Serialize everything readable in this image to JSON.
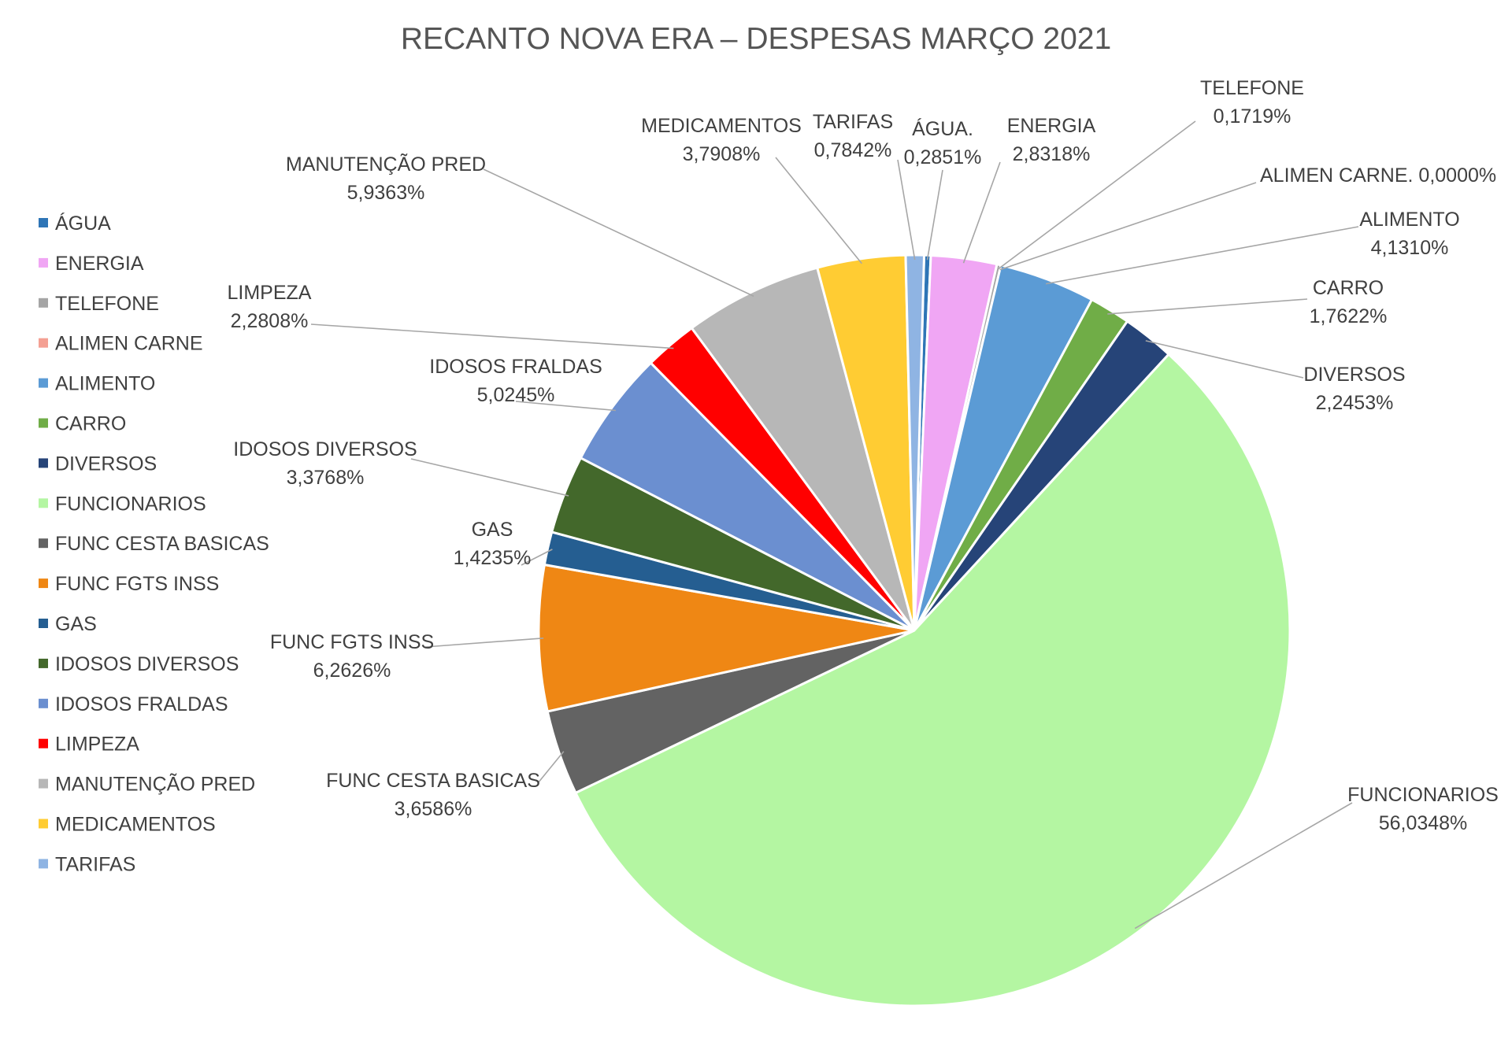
{
  "chart_data": {
    "type": "pie",
    "title": "RECANTO NOVA ERA – DESPESAS MARÇO 2021",
    "legend_position": "left",
    "slices": [
      {
        "name": "ÁGUA",
        "label": "ÁGUA.",
        "value": 0.2851,
        "value_label": "0,2851%",
        "color": "#2e75b6"
      },
      {
        "name": "ENERGIA",
        "label": "ENERGIA",
        "value": 2.8318,
        "value_label": "2,8318%",
        "color": "#f0a6f4"
      },
      {
        "name": "TELEFONE",
        "label": "TELEFONE",
        "value": 0.1719,
        "value_label": "0,1719%",
        "color": "#a5a5a5"
      },
      {
        "name": "ALIMEN CARNE",
        "label": "ALIMEN CARNE.",
        "value": 0.0,
        "value_label": "0,0000%",
        "color": "#f4a093"
      },
      {
        "name": "ALIMENTO",
        "label": "ALIMENTO",
        "value": 4.131,
        "value_label": "4,1310%",
        "color": "#5b9bd5"
      },
      {
        "name": "CARRO",
        "label": "CARRO",
        "value": 1.7622,
        "value_label": "1,7622%",
        "color": "#70ad47"
      },
      {
        "name": "DIVERSOS",
        "label": "DIVERSOS",
        "value": 2.2453,
        "value_label": "2,2453%",
        "color": "#264478"
      },
      {
        "name": "FUNCIONARIOS",
        "label": "FUNCIONARIOS",
        "value": 56.0348,
        "value_label": "56,0348%",
        "color": "#b4f6a2"
      },
      {
        "name": "FUNC CESTA BASICAS",
        "label": "FUNC CESTA BASICAS",
        "value": 3.6586,
        "value_label": "3,6586%",
        "color": "#636363"
      },
      {
        "name": "FUNC FGTS INSS",
        "label": "FUNC FGTS INSS",
        "value": 6.2626,
        "value_label": "6,2626%",
        "color": "#ef8714"
      },
      {
        "name": "GAS",
        "label": "GAS",
        "value": 1.4235,
        "value_label": "1,4235%",
        "color": "#255e91"
      },
      {
        "name": "IDOSOS DIVERSOS",
        "label": "IDOSOS DIVERSOS",
        "value": 3.3768,
        "value_label": "3,3768%",
        "color": "#43682b"
      },
      {
        "name": "IDOSOS FRALDAS",
        "label": "IDOSOS FRALDAS",
        "value": 5.0245,
        "value_label": "5,0245%",
        "color": "#6b8fd0"
      },
      {
        "name": "LIMPEZA",
        "label": "LIMPEZA",
        "value": 2.2808,
        "value_label": "2,2808%",
        "color": "#ff0000"
      },
      {
        "name": "MANUTENÇÃO PRED",
        "label": "MANUTENÇÃO PRED",
        "value": 5.9363,
        "value_label": "5,9363%",
        "color": "#b7b7b7"
      },
      {
        "name": "MEDICAMENTOS",
        "label": "MEDICAMENTOS",
        "value": 3.7908,
        "value_label": "3,7908%",
        "color": "#ffcc33"
      },
      {
        "name": "TARIFAS",
        "label": "TARIFAS",
        "value": 0.7842,
        "value_label": "0,7842%",
        "color": "#8fb4e3"
      }
    ]
  }
}
